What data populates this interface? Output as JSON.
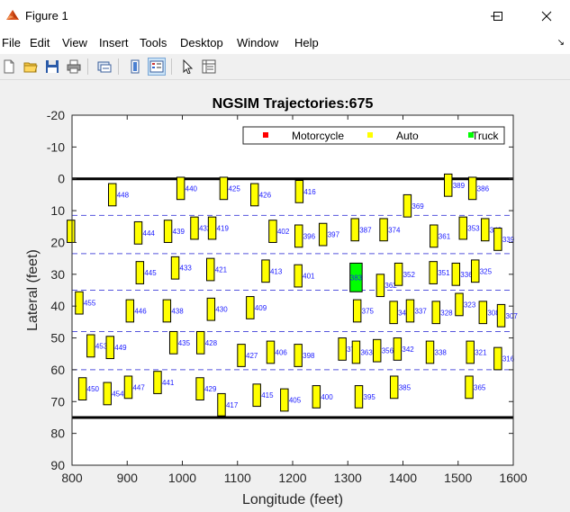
{
  "window": {
    "title": "Figure 1",
    "app_icon": "matlab-icon",
    "controls": {
      "minimize": "minimize-icon",
      "maximize": "maximize-icon",
      "close": "close-icon"
    }
  },
  "menu": [
    "File",
    "Edit",
    "View",
    "Insert",
    "Tools",
    "Desktop",
    "Window",
    "Help"
  ],
  "toolbar": [
    "new-figure-icon",
    "open-icon",
    "save-icon",
    "print-icon",
    "link-plot-icon",
    "colorbar-icon",
    "legend-icon",
    "edit-plot-icon",
    "property-inspector-icon"
  ],
  "chart_data": {
    "type": "scatter",
    "title": "NGSIM Trajectories:675",
    "xlabel": "Longitude (feet)",
    "ylabel": "Lateral (feet)",
    "xlim": [
      800,
      1600
    ],
    "ylim": [
      -20,
      90
    ],
    "y_reversed": true,
    "xticks": [
      800,
      900,
      1000,
      1100,
      1200,
      1300,
      1400,
      1500,
      1600
    ],
    "yticks": [
      -20,
      -10,
      0,
      10,
      20,
      30,
      40,
      50,
      60,
      70,
      80,
      90
    ],
    "grid": false,
    "legend": {
      "placement": "top-right",
      "entries": [
        {
          "label": "Motorcycle",
          "color": "#ff0000"
        },
        {
          "label": "Auto",
          "color": "#ffff00"
        },
        {
          "label": "Truck",
          "color": "#00ff00"
        }
      ]
    },
    "road_edges": [
      0,
      75
    ],
    "lane_lines": [
      11.5,
      23.5,
      35,
      48,
      60
    ],
    "lane_line_color": "#5555dd",
    "vehicle_width": 3.5,
    "vehicles": [
      {
        "id": "448",
        "x": 873,
        "y": 5,
        "len": 8,
        "cls": "Auto"
      },
      {
        "id": "440",
        "x": 997,
        "y": 3,
        "len": 7,
        "cls": "Auto"
      },
      {
        "id": "425",
        "x": 1075,
        "y": 3,
        "len": 8,
        "cls": "Auto"
      },
      {
        "id": "426",
        "x": 1131,
        "y": 5,
        "len": 7,
        "cls": "Auto"
      },
      {
        "id": "416",
        "x": 1212,
        "y": 4,
        "len": 7,
        "cls": "Auto"
      },
      {
        "id": "389",
        "x": 1482,
        "y": 2,
        "len": 6,
        "cls": "Auto"
      },
      {
        "id": "386",
        "x": 1526,
        "y": 3,
        "len": 8,
        "cls": "Auto"
      },
      {
        "id": "369",
        "x": 1408,
        "y": 8.5,
        "len": 6,
        "cls": "Auto"
      },
      {
        "id": "",
        "x": 798,
        "y": 16.5,
        "len": 7,
        "cls": "Auto"
      },
      {
        "id": "444",
        "x": 920,
        "y": 17,
        "len": 6,
        "cls": "Auto"
      },
      {
        "id": "439",
        "x": 974,
        "y": 16.5,
        "len": 6,
        "cls": "Auto"
      },
      {
        "id": "432",
        "x": 1022,
        "y": 15.5,
        "len": 6,
        "cls": "Auto"
      },
      {
        "id": "419",
        "x": 1054,
        "y": 15.5,
        "len": 6,
        "cls": "Auto"
      },
      {
        "id": "402",
        "x": 1164,
        "y": 16.5,
        "len": 8,
        "cls": "Auto"
      },
      {
        "id": "396",
        "x": 1211,
        "y": 18,
        "len": 8,
        "cls": "Auto"
      },
      {
        "id": "397",
        "x": 1255,
        "y": 17.5,
        "len": 7,
        "cls": "Auto"
      },
      {
        "id": "387",
        "x": 1313,
        "y": 16,
        "len": 6,
        "cls": "Auto"
      },
      {
        "id": "374",
        "x": 1365,
        "y": 16,
        "len": 6,
        "cls": "Auto"
      },
      {
        "id": "361",
        "x": 1456,
        "y": 18,
        "len": 7,
        "cls": "Auto"
      },
      {
        "id": "353",
        "x": 1509,
        "y": 15.5,
        "len": 7,
        "cls": "Auto"
      },
      {
        "id": "343",
        "x": 1549,
        "y": 16,
        "len": 6,
        "cls": "Auto"
      },
      {
        "id": "339",
        "x": 1572,
        "y": 19,
        "len": 7,
        "cls": "Auto"
      },
      {
        "id": "445",
        "x": 923,
        "y": 29.5,
        "len": 6,
        "cls": "Auto"
      },
      {
        "id": "433",
        "x": 987,
        "y": 28,
        "len": 6,
        "cls": "Auto"
      },
      {
        "id": "421",
        "x": 1051,
        "y": 28.5,
        "len": 6,
        "cls": "Auto"
      },
      {
        "id": "413",
        "x": 1151,
        "y": 29,
        "len": 7,
        "cls": "Auto"
      },
      {
        "id": "401",
        "x": 1210,
        "y": 30.5,
        "len": 6,
        "cls": "Auto"
      },
      {
        "id": "383",
        "x": 1315,
        "y": 31,
        "len": 8,
        "cls": "Truck"
      },
      {
        "id": "362",
        "x": 1359,
        "y": 33.5,
        "len": 7,
        "cls": "Auto"
      },
      {
        "id": "352",
        "x": 1392,
        "y": 30,
        "len": 7,
        "cls": "Auto"
      },
      {
        "id": "351",
        "x": 1455,
        "y": 29.5,
        "len": 6,
        "cls": "Auto"
      },
      {
        "id": "336",
        "x": 1496,
        "y": 30,
        "len": 6,
        "cls": "Auto"
      },
      {
        "id": "325",
        "x": 1531,
        "y": 29,
        "len": 6,
        "cls": "Auto"
      },
      {
        "id": "455",
        "x": 813,
        "y": 39,
        "len": 7,
        "cls": "Auto"
      },
      {
        "id": "446",
        "x": 905,
        "y": 41.5,
        "len": 6,
        "cls": "Auto"
      },
      {
        "id": "438",
        "x": 972,
        "y": 41.5,
        "len": 6,
        "cls": "Auto"
      },
      {
        "id": "430",
        "x": 1052,
        "y": 41,
        "len": 6,
        "cls": "Auto"
      },
      {
        "id": "409",
        "x": 1123,
        "y": 40.5,
        "len": 6,
        "cls": "Auto"
      },
      {
        "id": "375",
        "x": 1317,
        "y": 41.5,
        "len": 7,
        "cls": "Auto"
      },
      {
        "id": "341",
        "x": 1383,
        "y": 42,
        "len": 5,
        "cls": "Auto"
      },
      {
        "id": "337",
        "x": 1413,
        "y": 41.5,
        "len": 6,
        "cls": "Auto"
      },
      {
        "id": "328",
        "x": 1460,
        "y": 42,
        "len": 5,
        "cls": "Auto"
      },
      {
        "id": "323",
        "x": 1502,
        "y": 39.5,
        "len": 7,
        "cls": "Auto"
      },
      {
        "id": "308",
        "x": 1545,
        "y": 42,
        "len": 6,
        "cls": "Auto"
      },
      {
        "id": "307",
        "x": 1578,
        "y": 43,
        "len": 7,
        "cls": "Auto"
      },
      {
        "id": "453",
        "x": 834,
        "y": 52.5,
        "len": 6,
        "cls": "Auto"
      },
      {
        "id": "449",
        "x": 869,
        "y": 53,
        "len": 6,
        "cls": "Auto"
      },
      {
        "id": "435",
        "x": 984,
        "y": 51.5,
        "len": 6,
        "cls": "Auto"
      },
      {
        "id": "428",
        "x": 1033,
        "y": 51.5,
        "len": 7,
        "cls": "Auto"
      },
      {
        "id": "427",
        "x": 1107,
        "y": 55.5,
        "len": 6,
        "cls": "Auto"
      },
      {
        "id": "406",
        "x": 1160,
        "y": 54.5,
        "len": 7,
        "cls": "Auto"
      },
      {
        "id": "398",
        "x": 1210,
        "y": 55.5,
        "len": 6,
        "cls": "Auto"
      },
      {
        "id": "370",
        "x": 1290,
        "y": 53.5,
        "len": 6,
        "cls": "Auto"
      },
      {
        "id": "363",
        "x": 1315,
        "y": 54.5,
        "len": 6,
        "cls": "Auto"
      },
      {
        "id": "356",
        "x": 1353,
        "y": 54,
        "len": 6,
        "cls": "Auto"
      },
      {
        "id": "342",
        "x": 1390,
        "y": 53.5,
        "len": 6,
        "cls": "Auto"
      },
      {
        "id": "338",
        "x": 1449,
        "y": 54.5,
        "len": 6,
        "cls": "Auto"
      },
      {
        "id": "321",
        "x": 1522,
        "y": 54.5,
        "len": 6,
        "cls": "Auto"
      },
      {
        "id": "316",
        "x": 1572,
        "y": 56.5,
        "len": 6,
        "cls": "Auto"
      },
      {
        "id": "450",
        "x": 819,
        "y": 66,
        "len": 7,
        "cls": "Auto"
      },
      {
        "id": "454",
        "x": 864,
        "y": 67.5,
        "len": 7,
        "cls": "Auto"
      },
      {
        "id": "447",
        "x": 902,
        "y": 65.5,
        "len": 7,
        "cls": "Auto"
      },
      {
        "id": "441",
        "x": 955,
        "y": 64,
        "len": 6,
        "cls": "Auto"
      },
      {
        "id": "429",
        "x": 1032,
        "y": 66,
        "len": 6,
        "cls": "Auto"
      },
      {
        "id": "417",
        "x": 1071,
        "y": 71,
        "len": 7,
        "cls": "Auto"
      },
      {
        "id": "415",
        "x": 1135,
        "y": 68,
        "len": 6,
        "cls": "Auto"
      },
      {
        "id": "405",
        "x": 1185,
        "y": 69.5,
        "len": 6,
        "cls": "Auto"
      },
      {
        "id": "400",
        "x": 1243,
        "y": 68.5,
        "len": 7,
        "cls": "Auto"
      },
      {
        "id": "395",
        "x": 1320,
        "y": 68.5,
        "len": 5,
        "cls": "Auto"
      },
      {
        "id": "385",
        "x": 1384,
        "y": 65.5,
        "len": 6,
        "cls": "Auto"
      },
      {
        "id": "365",
        "x": 1520,
        "y": 65.5,
        "len": 8,
        "cls": "Auto"
      }
    ]
  }
}
